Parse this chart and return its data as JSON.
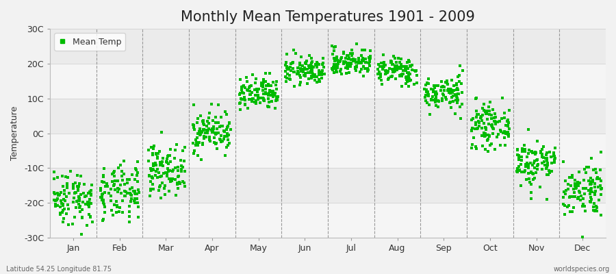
{
  "title": "Monthly Mean Temperatures 1901 - 2009",
  "ylabel": "Temperature",
  "xlabel_labels": [
    "Jan",
    "Feb",
    "Mar",
    "Apr",
    "May",
    "Jun",
    "Jul",
    "Aug",
    "Sep",
    "Oct",
    "Nov",
    "Dec"
  ],
  "ylim": [
    -30,
    30
  ],
  "ytick_labels": [
    "-30C",
    "-20C",
    "-10C",
    "0C",
    "10C",
    "20C",
    "30C"
  ],
  "ytick_values": [
    -30,
    -20,
    -10,
    0,
    10,
    20,
    30
  ],
  "dot_color": "#00BB00",
  "background_color": "#f2f2f2",
  "plot_bg_color": "#ebebeb",
  "band_color_light": "#f5f5f5",
  "legend_label": "Mean Temp",
  "bottom_left_text": "Latitude 54.25 Longitude 81.75",
  "bottom_right_text": "worldspecies.org",
  "years": 109,
  "start_year": 1901,
  "end_year": 2009,
  "mean_temps": [
    -18.5,
    -17.5,
    -10.5,
    0.5,
    11.0,
    18.0,
    20.5,
    18.0,
    11.5,
    2.0,
    -8.5,
    -16.0
  ],
  "std_temps": [
    4.0,
    4.0,
    3.5,
    3.0,
    2.5,
    2.0,
    2.0,
    2.0,
    2.5,
    3.0,
    3.5,
    4.0
  ],
  "title_fontsize": 15,
  "axis_fontsize": 9,
  "legend_fontsize": 9,
  "marker_size": 2.5
}
